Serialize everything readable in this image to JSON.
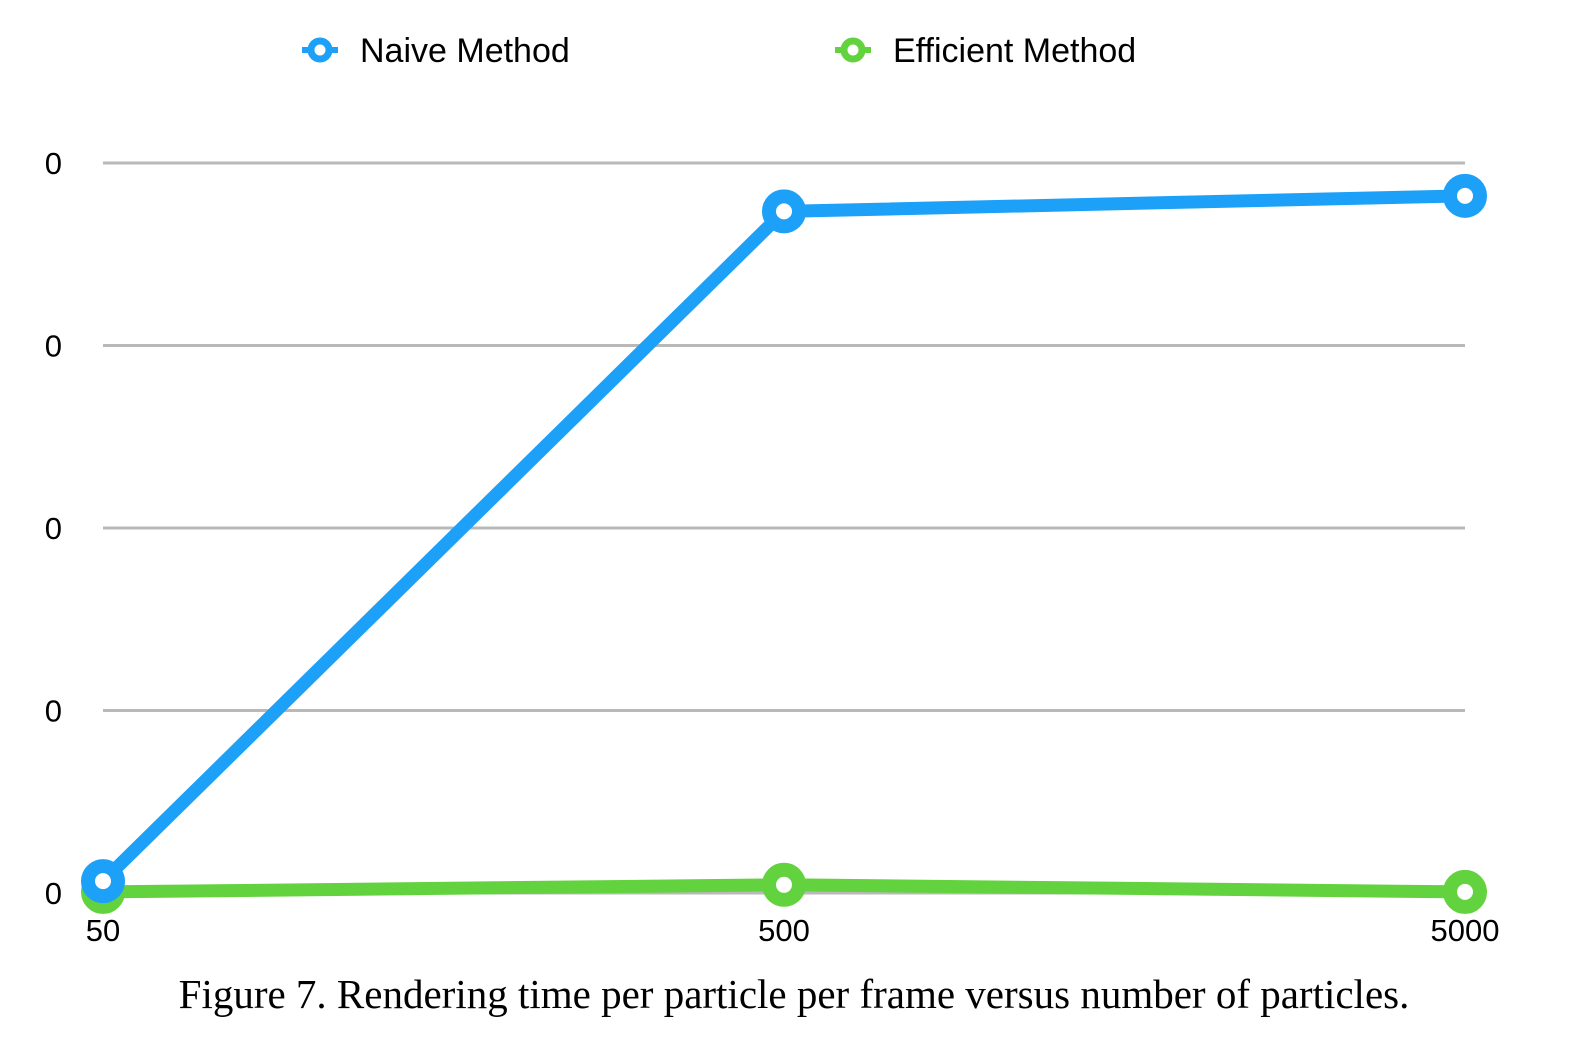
{
  "chart_data": {
    "type": "line",
    "title": "",
    "xlabel": "",
    "ylabel": "",
    "categories": [
      "50",
      "500",
      "5000"
    ],
    "series": [
      {
        "name": "Naive Method",
        "color": "#1da1f8",
        "values": [
          0.0065,
          0.3735,
          0.382
        ]
      },
      {
        "name": "Efficient Method",
        "color": "#62d23e",
        "values": [
          0.0006,
          0.0045,
          0.0006
        ]
      }
    ],
    "y_ticks": [
      {
        "value": 0.0,
        "label": "0"
      },
      {
        "value": 0.1,
        "label": "0"
      },
      {
        "value": 0.2,
        "label": "0"
      },
      {
        "value": 0.3,
        "label": "0"
      },
      {
        "value": 0.4,
        "label": "0"
      }
    ],
    "ylim": [
      0,
      0.4
    ],
    "grid": true,
    "legend_position": "top-center",
    "caption": "Figure 7. Rendering time per particle per frame versus number of particles."
  }
}
